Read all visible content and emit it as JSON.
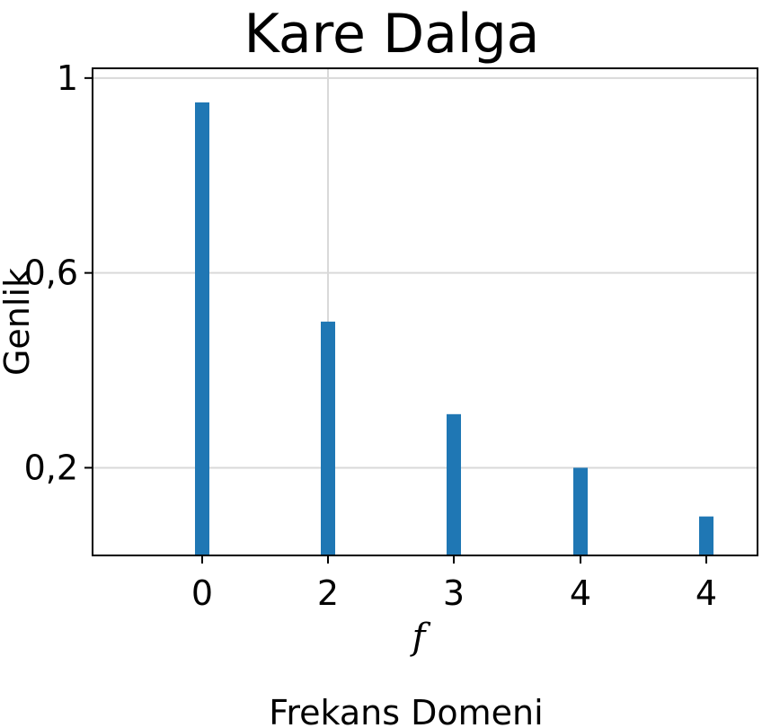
{
  "chart_data": {
    "type": "bar",
    "title": "Kare Dalga",
    "xlabel": "f",
    "ylabel": "Genlik",
    "footer": "Frekans Domeni",
    "categories": [
      "0",
      "2",
      "3",
      "4",
      "4"
    ],
    "values": [
      0.95,
      0.5,
      0.31,
      0.2,
      0.1
    ],
    "yticks": [
      1,
      0.6,
      0.2
    ],
    "ytick_labels": [
      "1",
      "0,6",
      "0,2"
    ],
    "ylim": [
      0.02,
      1.02
    ],
    "grid": true,
    "bar_color": "#1f77b4",
    "grid_color": "#d9d9d9"
  }
}
